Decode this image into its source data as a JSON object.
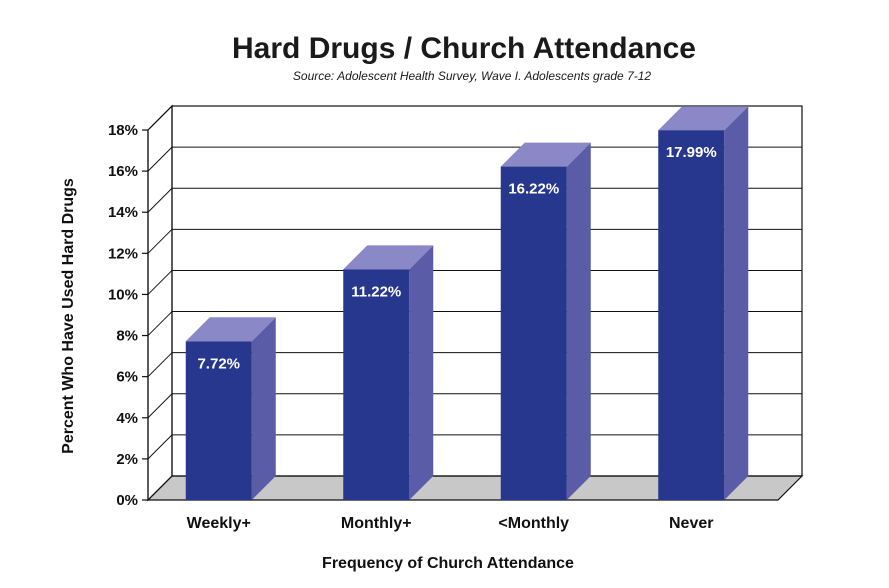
{
  "chart_data": {
    "type": "bar",
    "title": "Hard Drugs / Church Attendance",
    "subtitle": "Source: Adolescent Health Survey, Wave I. Adolescents grade 7-12",
    "xlabel": "Frequency of Church Attendance",
    "ylabel": "Percent Who Have Used Hard Drugs",
    "categories": [
      "Weekly+",
      "Monthly+",
      "<Monthly",
      "Never"
    ],
    "values": [
      7.72,
      11.22,
      16.22,
      17.99
    ],
    "data_labels": [
      "7.72%",
      "11.22%",
      "16.22%",
      "17.99%"
    ],
    "ylim": [
      0,
      18
    ],
    "yticks": [
      0,
      2,
      4,
      6,
      8,
      10,
      12,
      14,
      16,
      18
    ],
    "ytick_labels": [
      "0%",
      "2%",
      "4%",
      "6%",
      "8%",
      "10%",
      "12%",
      "14%",
      "16%",
      "18%"
    ],
    "grid": true,
    "style": "3d",
    "colors": {
      "bar_front": "#28378e",
      "bar_side": "#5a5ca8",
      "bar_top": "#8a88c6",
      "floor": "#c8c8c8"
    }
  }
}
